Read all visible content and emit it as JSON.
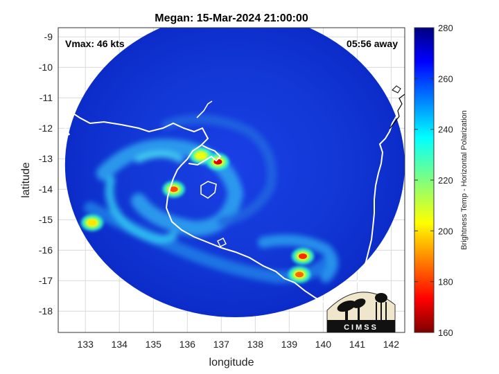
{
  "chart_data": {
    "type": "heatmap",
    "title": "Megan: 15-Mar-2024 21:00:00",
    "xlabel": "longitude",
    "ylabel": "latitude",
    "xlim": [
      132.2,
      142.4
    ],
    "ylim": [
      -18.7,
      -8.7
    ],
    "x_ticks": [
      "133",
      "134",
      "135",
      "136",
      "137",
      "138",
      "139",
      "140",
      "141",
      "142"
    ],
    "y_ticks": [
      "-9",
      "-10",
      "-11",
      "-12",
      "-13",
      "-14",
      "-15",
      "-16",
      "-17",
      "-18"
    ],
    "grid": true,
    "colorbar": {
      "label": "Brightness Temp - Horizontal Polarization",
      "range": [
        160,
        280
      ],
      "ticks": [
        "160",
        "180",
        "200",
        "220",
        "240",
        "260",
        "280"
      ],
      "colormap": "jet"
    },
    "annotations": {
      "vmax": "Vmax: 46 kts",
      "time_offset": "05:56 away"
    },
    "swath": {
      "center_lon": 137.4,
      "center_lat": -13.2,
      "radius_deg": 5.0
    },
    "cold_features": [
      {
        "lon": 136.9,
        "lat": -13.1,
        "value": 170
      },
      {
        "lon": 135.6,
        "lat": -14.0,
        "value": 182
      },
      {
        "lon": 139.4,
        "lat": -16.2,
        "value": 178
      },
      {
        "lon": 139.3,
        "lat": -16.8,
        "value": 185
      },
      {
        "lon": 136.4,
        "lat": -12.9,
        "value": 205
      },
      {
        "lon": 133.2,
        "lat": -15.1,
        "value": 200
      }
    ],
    "logo_text": "CIMSS"
  }
}
